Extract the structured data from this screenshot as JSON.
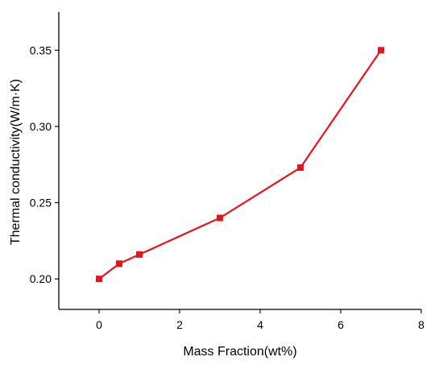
{
  "chart_data": {
    "type": "line",
    "title": "",
    "xlabel": "Mass Fraction(wt%)",
    "ylabel": "Thermal conductivity(W/m·K)",
    "xlim": [
      -1,
      8
    ],
    "ylim": [
      0.18,
      0.375
    ],
    "x_ticks": [
      0,
      2,
      4,
      6,
      8
    ],
    "x_tick_labels": [
      "0",
      "2",
      "4",
      "6",
      "8"
    ],
    "y_ticks": [
      0.2,
      0.25,
      0.3,
      0.35
    ],
    "y_tick_labels": [
      "0.20",
      "0.25",
      "0.30",
      "0.35"
    ],
    "grid": false,
    "series": [
      {
        "x": [
          0,
          0.5,
          1,
          3,
          5,
          7
        ],
        "y": [
          0.2,
          0.21,
          0.216,
          0.24,
          0.273,
          0.35
        ],
        "color": "#e8141c",
        "marker": "square"
      }
    ]
  }
}
